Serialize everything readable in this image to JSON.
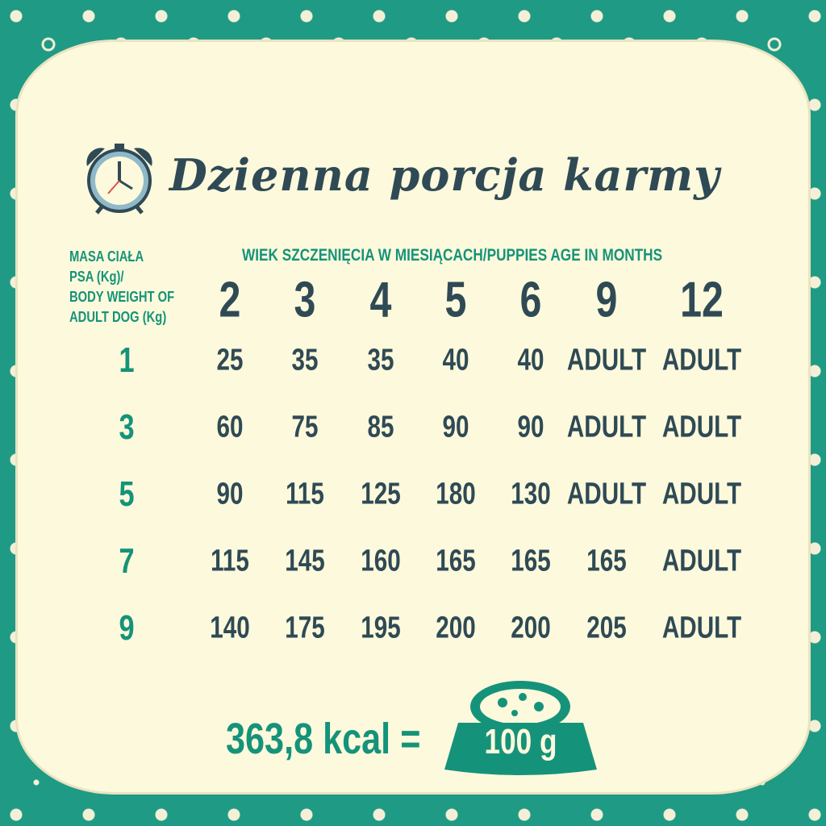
{
  "title": "Dzienna porcja karmy",
  "icon": "alarm-clock-icon",
  "colors": {
    "teal": "#15937a",
    "dark": "#2f4a55",
    "cream": "#fdf9dc",
    "background": "#1f9a84"
  },
  "weight_label": [
    "MASA CIAŁA",
    "PSA (Kg)/",
    "BODY WEIGHT OF",
    "ADULT DOG (Kg)"
  ],
  "age_header": "WIEK SZCZENIĘCIA W MIESIĄCACH/PUPPIES AGE IN MONTHS",
  "chart_data": {
    "type": "table",
    "columns": [
      "2",
      "3",
      "4",
      "5",
      "6",
      "9",
      "12"
    ],
    "rows": [
      {
        "weight": "1",
        "values": [
          "25",
          "35",
          "35",
          "40",
          "40",
          "ADULT",
          "ADULT"
        ]
      },
      {
        "weight": "3",
        "values": [
          "60",
          "75",
          "85",
          "90",
          "90",
          "ADULT",
          "ADULT"
        ]
      },
      {
        "weight": "5",
        "values": [
          "90",
          "115",
          "125",
          "180",
          "130",
          "ADULT",
          "ADULT"
        ]
      },
      {
        "weight": "7",
        "values": [
          "115",
          "145",
          "160",
          "165",
          "165",
          "165",
          "ADULT"
        ]
      },
      {
        "weight": "9",
        "values": [
          "140",
          "175",
          "195",
          "200",
          "200",
          "205",
          "ADULT"
        ]
      }
    ]
  },
  "footer": {
    "kcal": "363,8 kcal =",
    "bowl_label": "100 g",
    "bowl_icon": "food-bowl-icon"
  }
}
